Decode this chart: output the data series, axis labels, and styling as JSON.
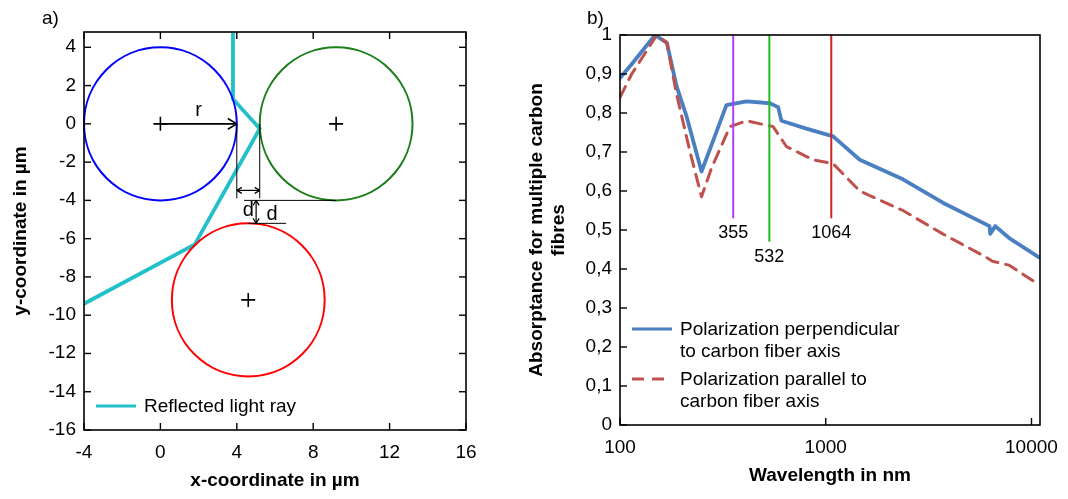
{
  "chart_data": [
    {
      "type": "line",
      "title": "a)",
      "xlabel": "x-coordinate in µm",
      "ylabel": "y-coordinate in µm",
      "xlim": [
        -4,
        16
      ],
      "xticks": [
        -4,
        0,
        4,
        8,
        12,
        16
      ],
      "ylim": [
        -16,
        4.8
      ],
      "yticks": [
        -16,
        -14,
        -12,
        -10,
        -8,
        -6,
        -4,
        -2,
        0,
        2,
        4
      ],
      "grid": false,
      "legend": "bottom left",
      "series": [
        {
          "type": "scatter",
          "marker": "cross",
          "color": "#000000",
          "x": [
            0,
            9.2,
            4.6
          ],
          "values": [
            0,
            0,
            -9.2
          ]
        },
        {
          "name": "Reflected light ray",
          "color": "#22c0c8",
          "x": [
            3.8,
            3.8,
            5.2,
            1.8,
            -4
          ],
          "values": [
            4.8,
            1.3,
            -0.25,
            -6.3,
            -9.4
          ]
        }
      ],
      "annotations": [
        "r",
        {
          "text": "d",
          "x": 5.2,
          "y": 0
        },
        "d"
      ]
    },
    {
      "type": "line",
      "title": "b)",
      "xlabel": "Wavelength in nm",
      "ylabel": "Absorptance for multiple carbon fibres",
      "log": "x",
      "xlim": [
        100,
        11000
      ],
      "xticks": [
        100,
        1000,
        10000
      ],
      "ylim": [
        0,
        1
      ],
      "yticks": [
        0,
        {
          "value": 0.1,
          "label": "0,1"
        },
        {
          "value": 0.2,
          "label": "0,2"
        },
        {
          "value": 0.3,
          "label": "0,3"
        },
        {
          "value": 0.4,
          "label": "0,4"
        },
        {
          "value": 0.5,
          "label": "0,5"
        },
        {
          "value": 0.6,
          "label": "0,6"
        },
        {
          "value": 0.7,
          "label": "0,7"
        },
        {
          "value": 0.8,
          "label": "0,8"
        },
        {
          "value": 0.9,
          "label": "0,9"
        },
        1
      ],
      "grid": false,
      "legend": "bottom left",
      "series": [
        {
          "name": "Polarization perpendicular to carbon fiber axis",
          "color": "#4a7fc1",
          "line_style": "solid",
          "x": [
            100,
            116,
            148,
            169,
            188,
            211,
            249,
            284,
            329,
            412,
            535,
            587,
            609,
            805,
            1086,
            1463,
            2372,
            3707,
            6250,
            6300,
            6670,
            7760,
            10870
          ],
          "values": [
            0.89,
            0.93,
            1.0,
            0.98,
            0.87,
            0.79,
            0.65,
            0.73,
            0.82,
            0.83,
            0.825,
            0.815,
            0.78,
            0.76,
            0.74,
            0.68,
            0.63,
            0.57,
            0.51,
            0.49,
            0.51,
            0.48,
            0.43
          ]
        },
        {
          "name": "Polarization parallel to carbon fiber axis",
          "color": "#c0504d",
          "line_style": "dashed",
          "x": [
            100,
            114,
            151,
            169,
            188,
            219,
            249,
            279,
            342,
            412,
            555,
            644,
            868,
            1086,
            1463,
            2372,
            3707,
            6030,
            6460,
            7760,
            10870
          ],
          "values": [
            0.84,
            0.9,
            1.0,
            0.98,
            0.85,
            0.7,
            0.585,
            0.66,
            0.765,
            0.78,
            0.765,
            0.714,
            0.68,
            0.67,
            0.6,
            0.55,
            0.49,
            0.43,
            0.42,
            0.41,
            0.36
          ]
        }
      ],
      "ref_lines": [
        {
          "axis": "x",
          "value": 355,
          "label": "355",
          "color": "#b040ff"
        },
        {
          "axis": "x",
          "value": 532,
          "label": "532",
          "color": "#22bb22"
        },
        {
          "axis": "x",
          "value": 1064,
          "label": "1064",
          "color": "#cc2222"
        }
      ]
    }
  ]
}
